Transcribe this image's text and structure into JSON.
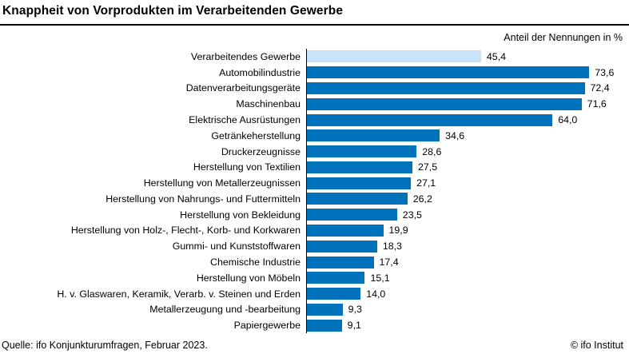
{
  "header": {
    "title": "Knappheit von Vorprodukten im Verarbeitenden Gewerbe",
    "unit_label": "Anteil der Nennungen in %"
  },
  "footer": {
    "source": "Quelle: ifo Konjunkturumfragen, Februar 2023.",
    "copyright": "© ifo Institut"
  },
  "colors": {
    "bar": "#0072BC",
    "highlight_bar": "#C9E3F8",
    "axis": "#000000",
    "title_rule": "#000000"
  },
  "chart_data": {
    "type": "bar",
    "orientation": "horizontal",
    "title": "Knappheit von Vorprodukten im Verarbeitenden Gewerbe",
    "xlabel": "Anteil der Nennungen in %",
    "xlim": [
      0,
      80
    ],
    "grid": false,
    "legend": false,
    "highlight_index": 0,
    "categories": [
      "Verarbeitendes Gewerbe",
      "Automobilindustrie",
      "Datenverarbeitungsgeräte",
      "Maschinenbau",
      "Elektrische Ausrüstungen",
      "Getränkeherstellung",
      "Druckerzeugnisse",
      "Herstellung von Textilien",
      "Herstellung von Metallerzeugnissen",
      "Herstellung von Nahrungs- und Futtermitteln",
      "Herstellung von Bekleidung",
      "Herstellung von Holz-, Flecht-, Korb- und Korkwaren",
      "Gummi- und Kunststoffwaren",
      "Chemische Industrie",
      "Herstellung von Möbeln",
      "H. v. Glaswaren, Keramik, Verarb. v. Steinen und Erden",
      "Metallerzeugung und -bearbeitung",
      "Papiergewerbe"
    ],
    "values": [
      45.4,
      73.6,
      72.4,
      71.6,
      64.0,
      34.6,
      28.6,
      27.5,
      27.1,
      26.2,
      23.5,
      19.9,
      18.3,
      17.4,
      15.1,
      14.0,
      9.3,
      9.1
    ],
    "value_labels": [
      "45,4",
      "73,6",
      "72,4",
      "71,6",
      "64,0",
      "34,6",
      "28,6",
      "27,5",
      "27,1",
      "26,2",
      "23,5",
      "19,9",
      "18,3",
      "17,4",
      "15,1",
      "14,0",
      "9,3",
      "9,1"
    ]
  }
}
